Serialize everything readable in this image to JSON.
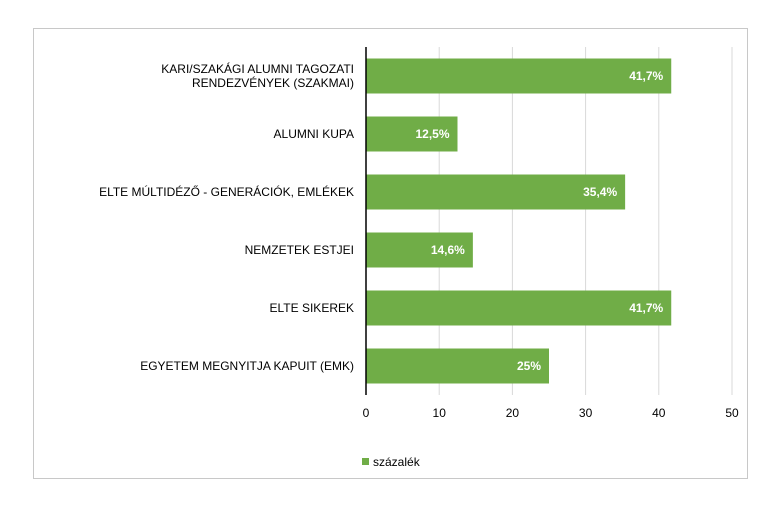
{
  "chart_data": {
    "type": "bar",
    "orientation": "horizontal",
    "categories": [
      [
        "KARI/SZAKÁGI ALUMNI TAGOZATI",
        "RENDEZVÉNYEK (SZAKMAI)"
      ],
      [
        "ALUMNI KUPA"
      ],
      [
        "ELTE MÚLTIDÉZŐ - GENERÁCIÓK, EMLÉKEK"
      ],
      [
        "NEMZETEK ESTJEI"
      ],
      [
        "ELTE SIKEREK"
      ],
      [
        "EGYETEM MEGNYITJA KAPUIT (EMK)"
      ]
    ],
    "series": [
      {
        "name": "százalék",
        "values": [
          41.7,
          12.5,
          35.4,
          14.6,
          41.7,
          25
        ],
        "data_labels": [
          "41,7%",
          "12,5%",
          "35,4%",
          "14,6%",
          "41,7%",
          "25%"
        ]
      }
    ],
    "xlim": [
      0,
      50
    ],
    "xticks": [
      0,
      10,
      20,
      30,
      40,
      50
    ],
    "xtick_labels": [
      "0",
      "10",
      "20",
      "30",
      "40",
      "50"
    ],
    "grid": "vertical",
    "legend_position": "bottom",
    "colors": {
      "bar": "#70ad47",
      "grid": "#d9d9d9",
      "axis": "#000000"
    }
  }
}
